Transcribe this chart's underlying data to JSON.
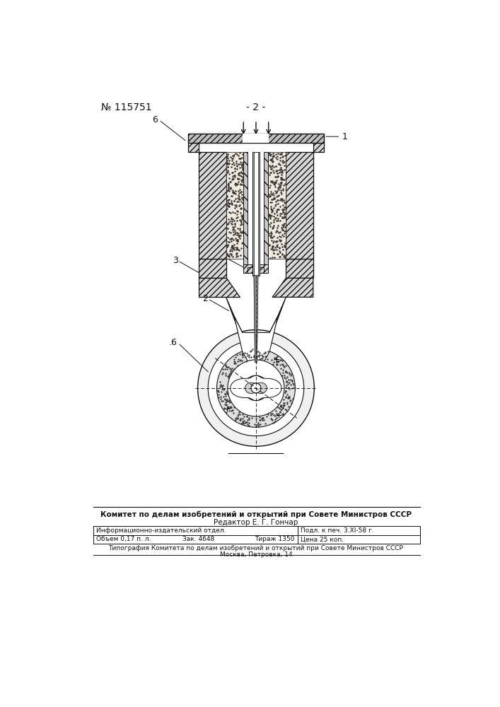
{
  "page_number": "- 2 -",
  "patent_number": "№ 115751",
  "footer_line1": "Комитет по делам изобретений и открытий при Совете Министров СССР",
  "footer_line2": "Редактор Е. Г. Гончар",
  "footer_col1_row1": "Информационно-издательский отдел.",
  "footer_col1_row2": "Объем 0,17 п. л.",
  "footer_col2_row2": "Зак. 4648",
  "footer_col3_row2": "Тираж 1350",
  "footer_col4_row1": "Подл. к печ. 3.XI-58 г.",
  "footer_col4_row2": "Цена 25 коп.",
  "footer_line_last1": "Типография Комитета по делам изобретений и открытий при Совете Министров СССР",
  "footer_line_last2": "Москва, Петровка, 14",
  "bg_color": "#ffffff"
}
